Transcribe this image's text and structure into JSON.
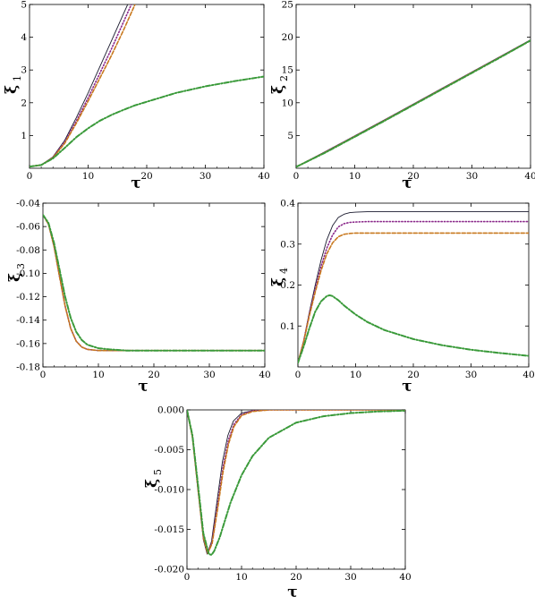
{
  "colors": {
    "solid": "#1a1a2e",
    "dotted": "#8b2a8b",
    "dashed": "#c8781e",
    "dashdot": "#3a9a3a"
  },
  "chart_data": [
    {
      "type": "line",
      "xlabel": "τ",
      "ylabel_base": "ξ",
      "ylabel_sub": "1",
      "xlim": [
        0,
        40
      ],
      "ylim": [
        0,
        5
      ],
      "xticks": [
        0,
        10,
        20,
        30,
        40
      ],
      "yticks": [
        1,
        2,
        3,
        4,
        5
      ],
      "ytick_labels": [
        "1",
        "2",
        "3",
        "4",
        "5"
      ],
      "series": [
        {
          "style": "solid",
          "x": [
            0,
            2,
            4,
            6,
            8,
            10,
            12,
            14,
            16,
            17
          ],
          "y": [
            0.05,
            0.1,
            0.35,
            0.85,
            1.55,
            2.3,
            3.1,
            3.9,
            4.7,
            5.1
          ]
        },
        {
          "style": "dotted",
          "x": [
            0,
            2,
            4,
            6,
            8,
            10,
            12,
            14,
            16,
            17.5
          ],
          "y": [
            0.05,
            0.1,
            0.33,
            0.8,
            1.45,
            2.15,
            2.9,
            3.65,
            4.45,
            5.05
          ]
        },
        {
          "style": "dashed",
          "x": [
            0,
            2,
            4,
            6,
            8,
            10,
            12,
            14,
            16,
            18
          ],
          "y": [
            0.05,
            0.1,
            0.32,
            0.76,
            1.38,
            2.05,
            2.75,
            3.45,
            4.2,
            5.0
          ]
        },
        {
          "style": "dashdot",
          "x": [
            0,
            2,
            4,
            6,
            8,
            10,
            12,
            14,
            16,
            18,
            20,
            25,
            30,
            35,
            40
          ],
          "y": [
            0.05,
            0.1,
            0.3,
            0.62,
            0.95,
            1.22,
            1.45,
            1.63,
            1.78,
            1.92,
            2.03,
            2.3,
            2.5,
            2.66,
            2.8
          ]
        }
      ]
    },
    {
      "type": "line",
      "xlabel": "τ",
      "ylabel_base": "ξ",
      "ylabel_sub": "2",
      "xlim": [
        0,
        40
      ],
      "ylim": [
        0,
        25
      ],
      "xticks": [
        0,
        10,
        20,
        30,
        40
      ],
      "yticks": [
        5,
        10,
        15,
        20,
        25
      ],
      "ytick_labels": [
        "5",
        "10",
        "15",
        "20",
        "25"
      ],
      "series": [
        {
          "style": "solid",
          "x": [
            0,
            5,
            10,
            15,
            20,
            25,
            30,
            35,
            40
          ],
          "y": [
            0.2,
            2.55,
            4.95,
            7.35,
            9.8,
            12.25,
            14.7,
            17.15,
            19.6
          ]
        },
        {
          "style": "dotted",
          "x": [
            0,
            5,
            10,
            15,
            20,
            25,
            30,
            35,
            40
          ],
          "y": [
            0.2,
            2.5,
            4.9,
            7.3,
            9.75,
            12.2,
            14.65,
            17.1,
            19.55
          ]
        },
        {
          "style": "dashed",
          "x": [
            0,
            5,
            10,
            15,
            20,
            25,
            30,
            35,
            40
          ],
          "y": [
            0.2,
            2.45,
            4.85,
            7.25,
            9.7,
            12.15,
            14.6,
            17.05,
            19.5
          ]
        },
        {
          "style": "dashdot",
          "x": [
            0,
            5,
            10,
            15,
            20,
            25,
            30,
            35,
            40
          ],
          "y": [
            0.2,
            2.4,
            4.8,
            7.2,
            9.65,
            12.1,
            14.55,
            17.0,
            19.5
          ]
        }
      ]
    },
    {
      "type": "line",
      "xlabel": "τ",
      "ylabel_base": "ξ",
      "ylabel_sub": "3",
      "xlim": [
        0,
        40
      ],
      "ylim": [
        -0.18,
        -0.04
      ],
      "xticks": [
        0,
        10,
        20,
        30,
        40
      ],
      "yticks": [
        -0.04,
        -0.06,
        -0.08,
        -0.1,
        -0.12,
        -0.14,
        -0.16,
        -0.18
      ],
      "ytick_labels": [
        "-0.04",
        "-0.06",
        "-0.08",
        "-0.10",
        "-0.12",
        "-0.14",
        "-0.16",
        "-0.18"
      ],
      "series": [
        {
          "style": "solid",
          "x": [
            0,
            1,
            2,
            3,
            4,
            5,
            6,
            7,
            8,
            10,
            15,
            40
          ],
          "y": [
            -0.05,
            -0.058,
            -0.077,
            -0.103,
            -0.128,
            -0.147,
            -0.158,
            -0.163,
            -0.165,
            -0.166,
            -0.166,
            -0.166
          ]
        },
        {
          "style": "dotted",
          "x": [
            0,
            1,
            2,
            3,
            4,
            5,
            6,
            7,
            8,
            10,
            15,
            40
          ],
          "y": [
            -0.05,
            -0.058,
            -0.077,
            -0.103,
            -0.128,
            -0.147,
            -0.158,
            -0.163,
            -0.165,
            -0.166,
            -0.166,
            -0.166
          ]
        },
        {
          "style": "dashed",
          "x": [
            0,
            1,
            2,
            3,
            4,
            5,
            6,
            7,
            8,
            10,
            15,
            40
          ],
          "y": [
            -0.05,
            -0.058,
            -0.077,
            -0.103,
            -0.128,
            -0.147,
            -0.158,
            -0.163,
            -0.165,
            -0.166,
            -0.166,
            -0.166
          ]
        },
        {
          "style": "dashdot",
          "x": [
            0,
            1,
            2,
            3,
            4,
            5,
            6,
            7,
            8,
            10,
            12,
            15,
            20,
            40
          ],
          "y": [
            -0.05,
            -0.057,
            -0.074,
            -0.097,
            -0.12,
            -0.138,
            -0.15,
            -0.157,
            -0.161,
            -0.164,
            -0.165,
            -0.166,
            -0.166,
            -0.166
          ]
        }
      ]
    },
    {
      "type": "line",
      "xlabel": "τ",
      "ylabel_base": "ξ",
      "ylabel_sub": "4",
      "xlim": [
        0,
        40
      ],
      "ylim": [
        0,
        0.4
      ],
      "xticks": [
        0,
        10,
        20,
        30,
        40
      ],
      "yticks": [
        0.1,
        0.2,
        0.3,
        0.4
      ],
      "ytick_labels": [
        "0.1",
        "0.2",
        "0.3",
        "0.4"
      ],
      "series": [
        {
          "style": "solid",
          "x": [
            0,
            1,
            2,
            3,
            4,
            5,
            6,
            7,
            8,
            9,
            10,
            12,
            15,
            40
          ],
          "y": [
            0.01,
            0.065,
            0.135,
            0.2,
            0.26,
            0.31,
            0.345,
            0.365,
            0.373,
            0.377,
            0.378,
            0.379,
            0.379,
            0.379
          ]
        },
        {
          "style": "dotted",
          "x": [
            0,
            1,
            2,
            3,
            4,
            5,
            6,
            7,
            8,
            9,
            10,
            12,
            15,
            40
          ],
          "y": [
            0.01,
            0.063,
            0.13,
            0.19,
            0.245,
            0.29,
            0.322,
            0.342,
            0.35,
            0.353,
            0.354,
            0.355,
            0.355,
            0.355
          ]
        },
        {
          "style": "dashed",
          "x": [
            0,
            1,
            2,
            3,
            4,
            5,
            6,
            7,
            8,
            9,
            10,
            12,
            15,
            40
          ],
          "y": [
            0.01,
            0.062,
            0.126,
            0.183,
            0.235,
            0.276,
            0.303,
            0.318,
            0.324,
            0.326,
            0.327,
            0.327,
            0.327,
            0.327
          ]
        },
        {
          "style": "dashdot",
          "x": [
            0,
            1,
            2,
            3,
            4,
            5,
            5.5,
            6,
            7,
            8,
            10,
            12,
            15,
            20,
            25,
            30,
            35,
            40
          ],
          "y": [
            0.01,
            0.05,
            0.095,
            0.135,
            0.16,
            0.173,
            0.175,
            0.173,
            0.163,
            0.15,
            0.128,
            0.11,
            0.09,
            0.068,
            0.053,
            0.042,
            0.034,
            0.027
          ]
        }
      ]
    },
    {
      "type": "line",
      "xlabel": "τ",
      "ylabel_base": "ξ",
      "ylabel_sub": "5",
      "xlim": [
        0,
        40
      ],
      "ylim": [
        -0.02,
        0
      ],
      "xticks": [
        0,
        10,
        20,
        30,
        40
      ],
      "yticks": [
        0,
        -0.005,
        -0.01,
        -0.015,
        -0.02
      ],
      "ytick_labels": [
        "0.000",
        "-0.005",
        "-0.010",
        "-0.015",
        "-0.020"
      ],
      "series": [
        {
          "style": "solid",
          "x": [
            0,
            1,
            2,
            3,
            3.7,
            4.5,
            5.5,
            6.5,
            7.5,
            8.5,
            10,
            12,
            15,
            40
          ],
          "y": [
            0,
            -0.0035,
            -0.01,
            -0.0163,
            -0.0181,
            -0.0165,
            -0.0115,
            -0.0065,
            -0.0032,
            -0.0014,
            -0.0004,
            -0.0001,
            0,
            0
          ]
        },
        {
          "style": "dotted",
          "x": [
            0,
            1,
            2,
            3,
            3.8,
            4.6,
            5.6,
            6.6,
            7.6,
            8.6,
            10,
            12,
            15,
            40
          ],
          "y": [
            0,
            -0.0034,
            -0.0098,
            -0.016,
            -0.018,
            -0.0166,
            -0.012,
            -0.0072,
            -0.0038,
            -0.0018,
            -0.0006,
            -0.0001,
            0,
            0
          ]
        },
        {
          "style": "dashed",
          "x": [
            0,
            1,
            2,
            3,
            3.8,
            4.6,
            5.6,
            6.6,
            7.6,
            8.6,
            10,
            12,
            15,
            40
          ],
          "y": [
            0,
            -0.0034,
            -0.0098,
            -0.016,
            -0.018,
            -0.0168,
            -0.0125,
            -0.0078,
            -0.0043,
            -0.0021,
            -0.0007,
            -0.0002,
            0,
            0
          ]
        },
        {
          "style": "dashdot",
          "x": [
            0,
            1,
            2,
            3,
            4,
            4.5,
            5,
            6,
            7,
            8,
            10,
            12,
            15,
            20,
            25,
            30,
            35,
            40
          ],
          "y": [
            0,
            -0.0032,
            -0.0093,
            -0.0155,
            -0.0181,
            -0.0182,
            -0.0177,
            -0.016,
            -0.0138,
            -0.0116,
            -0.0082,
            -0.0058,
            -0.0035,
            -0.0016,
            -0.0008,
            -0.0004,
            -0.0002,
            -0.0001
          ]
        }
      ]
    }
  ]
}
